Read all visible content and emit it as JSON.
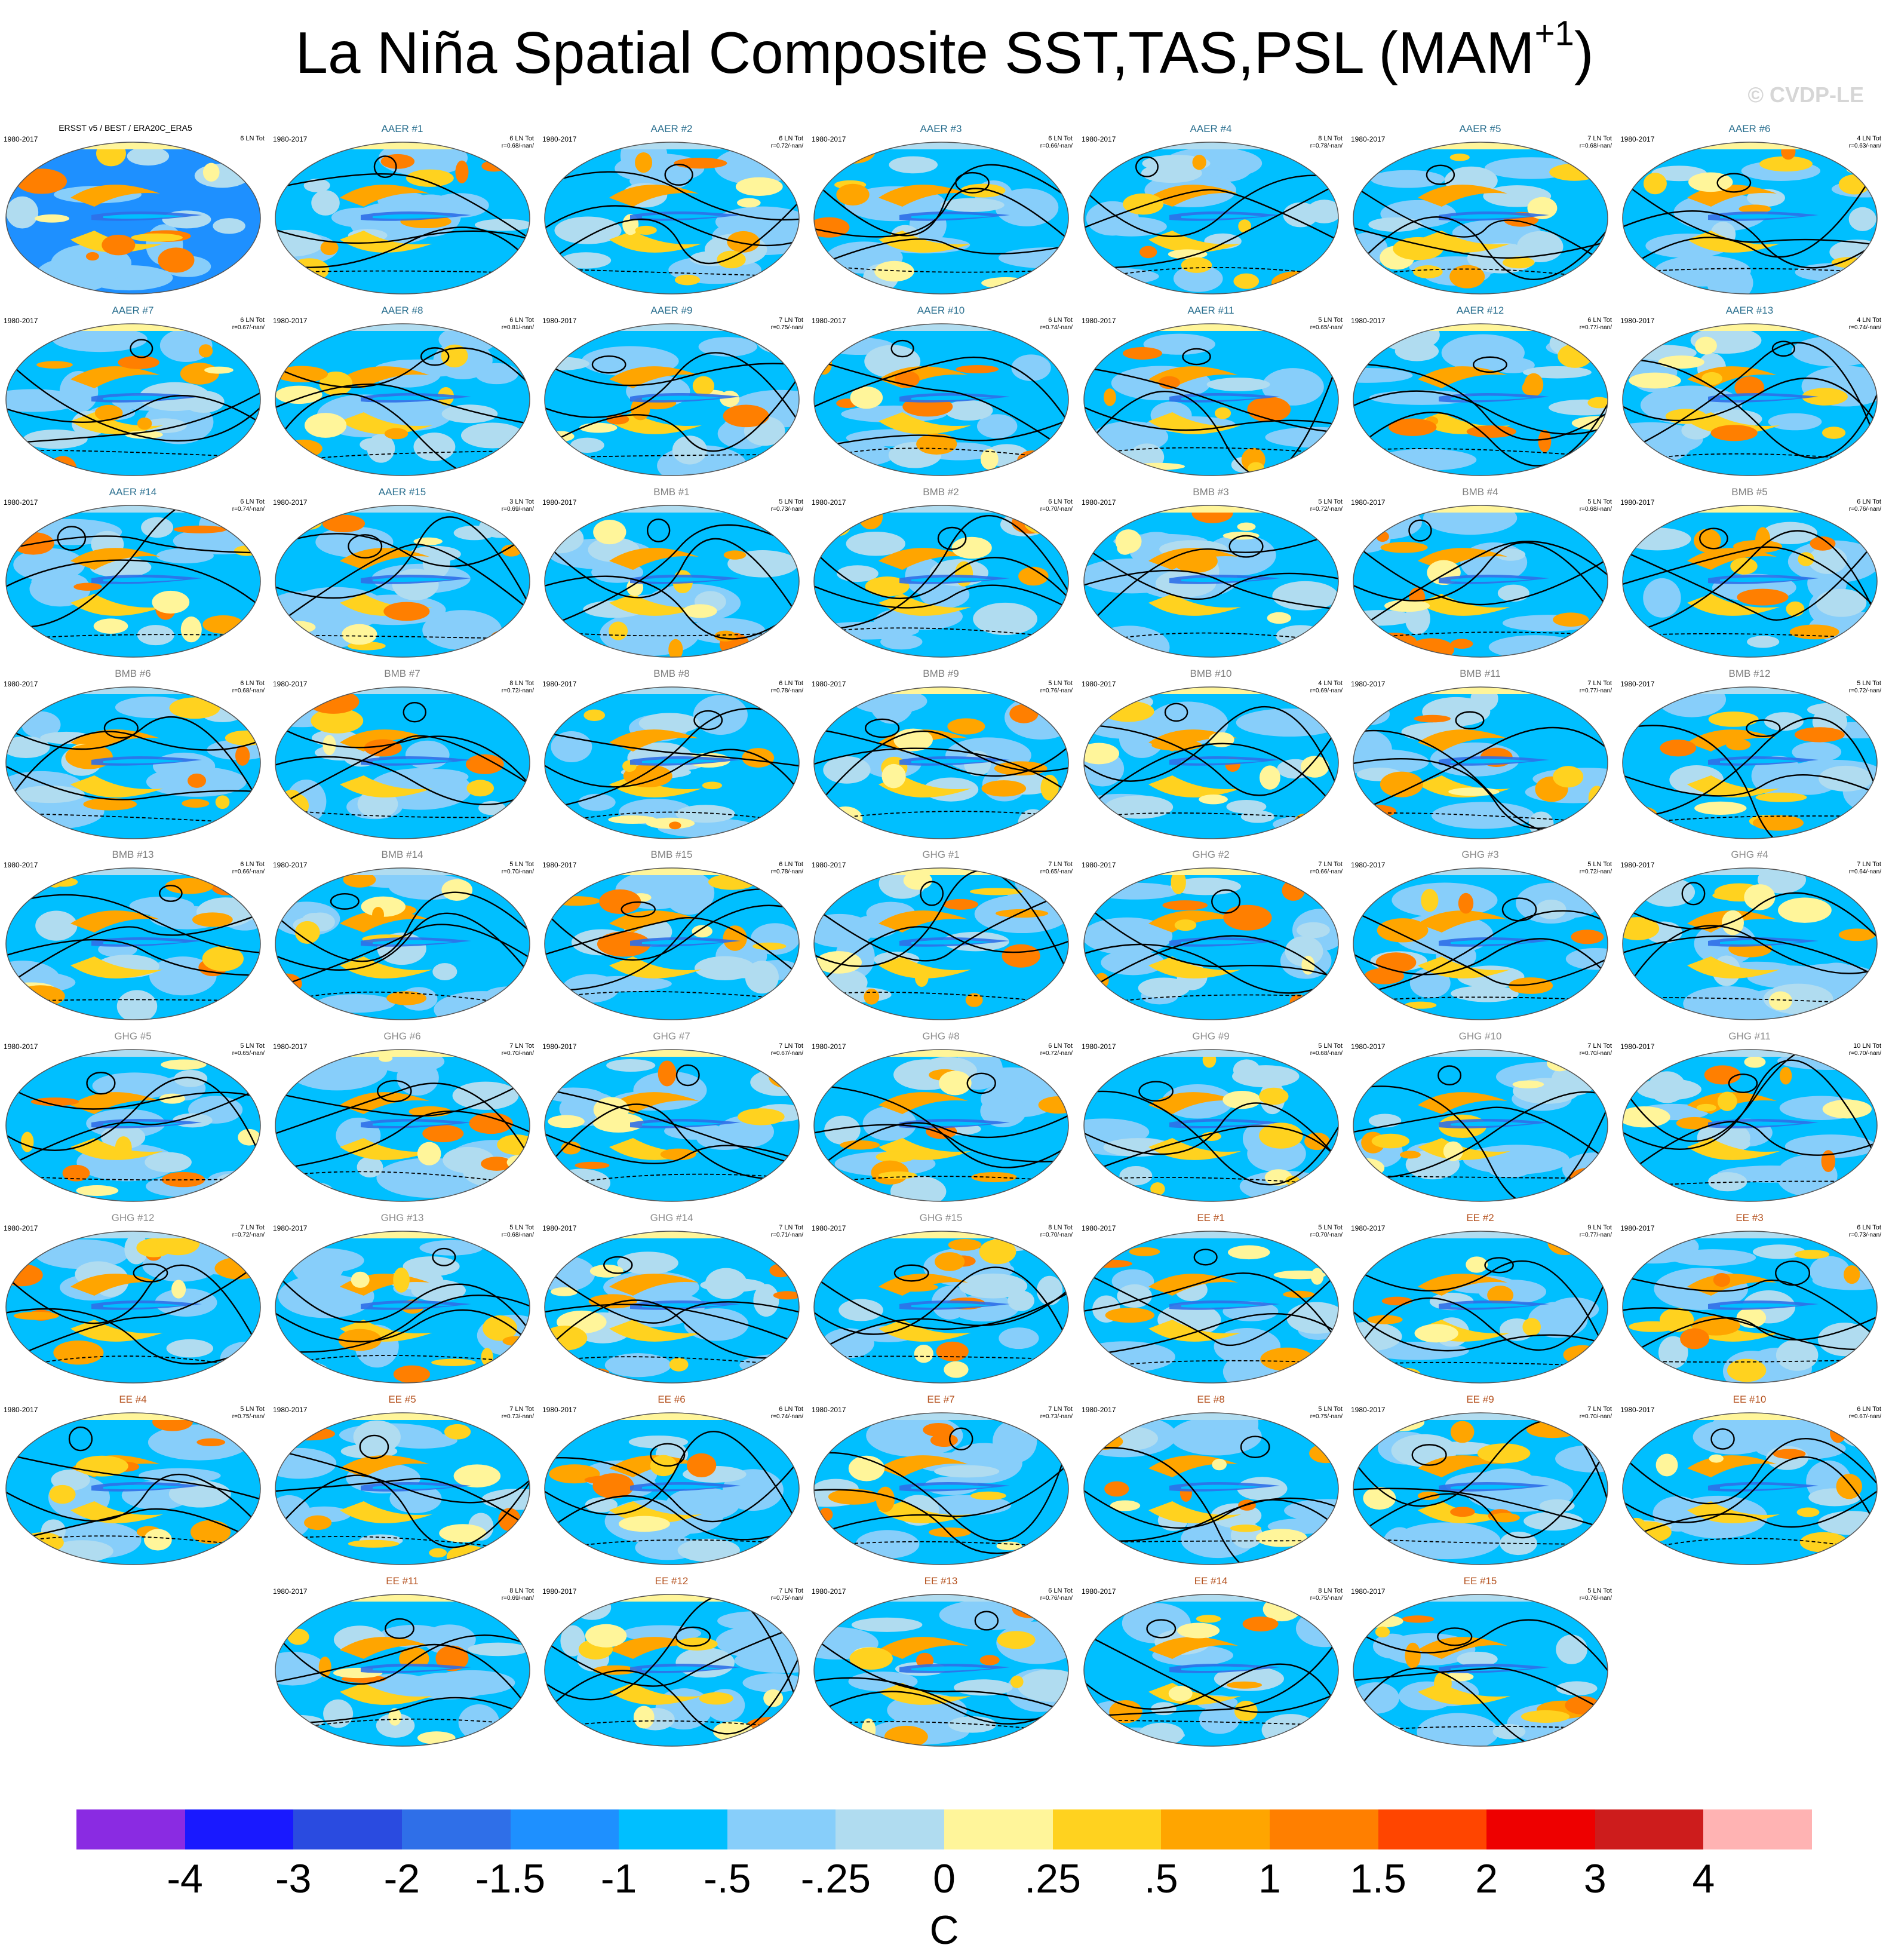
{
  "title": {
    "text": "La Niña Spatial Composite SST,TAS,PSL (MAM",
    "sup": "+1",
    "close": ")"
  },
  "copyright": "© CVDP-LE",
  "panels": [
    {
      "title": "ERSST v5 / BEST / ERA20C_ERA5",
      "period": "1980-2017",
      "count": "6 LN Tot",
      "corr": "",
      "group": "OBS"
    },
    {
      "title": "AAER #1",
      "period": "1980-2017",
      "count": "6 LN Tot",
      "corr": "r=0.68/-nan/",
      "group": "AAER"
    },
    {
      "title": "AAER #2",
      "period": "1980-2017",
      "count": "6 LN Tot",
      "corr": "r=0.72/-nan/",
      "group": "AAER"
    },
    {
      "title": "AAER #3",
      "period": "1980-2017",
      "count": "6 LN Tot",
      "corr": "r=0.66/-nan/",
      "group": "AAER"
    },
    {
      "title": "AAER #4",
      "period": "1980-2017",
      "count": "8 LN Tot",
      "corr": "r=0.78/-nan/",
      "group": "AAER"
    },
    {
      "title": "AAER #5",
      "period": "1980-2017",
      "count": "7 LN Tot",
      "corr": "r=0.68/-nan/",
      "group": "AAER"
    },
    {
      "title": "AAER #6",
      "period": "1980-2017",
      "count": "4 LN Tot",
      "corr": "r=0.63/-nan/",
      "group": "AAER"
    },
    {
      "title": "AAER #7",
      "period": "1980-2017",
      "count": "6 LN Tot",
      "corr": "r=0.67/-nan/",
      "group": "AAER"
    },
    {
      "title": "AAER #8",
      "period": "1980-2017",
      "count": "6 LN Tot",
      "corr": "r=0.81/-nan/",
      "group": "AAER"
    },
    {
      "title": "AAER #9",
      "period": "1980-2017",
      "count": "7 LN Tot",
      "corr": "r=0.75/-nan/",
      "group": "AAER"
    },
    {
      "title": "AAER #10",
      "period": "1980-2017",
      "count": "6 LN Tot",
      "corr": "r=0.74/-nan/",
      "group": "AAER"
    },
    {
      "title": "AAER #11",
      "period": "1980-2017",
      "count": "5 LN Tot",
      "corr": "r=0.65/-nan/",
      "group": "AAER"
    },
    {
      "title": "AAER #12",
      "period": "1980-2017",
      "count": "6 LN Tot",
      "corr": "r=0.77/-nan/",
      "group": "AAER"
    },
    {
      "title": "AAER #13",
      "period": "1980-2017",
      "count": "4 LN Tot",
      "corr": "r=0.74/-nan/",
      "group": "AAER"
    },
    {
      "title": "AAER #14",
      "period": "1980-2017",
      "count": "6 LN Tot",
      "corr": "r=0.74/-nan/",
      "group": "AAER"
    },
    {
      "title": "AAER #15",
      "period": "1980-2017",
      "count": "3 LN Tot",
      "corr": "r=0.69/-nan/",
      "group": "AAER"
    },
    {
      "title": "BMB #1",
      "period": "1980-2017",
      "count": "5 LN Tot",
      "corr": "r=0.73/-nan/",
      "group": "BMB"
    },
    {
      "title": "BMB #2",
      "period": "1980-2017",
      "count": "6 LN Tot",
      "corr": "r=0.70/-nan/",
      "group": "BMB"
    },
    {
      "title": "BMB #3",
      "period": "1980-2017",
      "count": "5 LN Tot",
      "corr": "r=0.72/-nan/",
      "group": "BMB"
    },
    {
      "title": "BMB #4",
      "period": "1980-2017",
      "count": "5 LN Tot",
      "corr": "r=0.68/-nan/",
      "group": "BMB"
    },
    {
      "title": "BMB #5",
      "period": "1980-2017",
      "count": "6 LN Tot",
      "corr": "r=0.76/-nan/",
      "group": "BMB"
    },
    {
      "title": "BMB #6",
      "period": "1980-2017",
      "count": "6 LN Tot",
      "corr": "r=0.68/-nan/",
      "group": "BMB"
    },
    {
      "title": "BMB #7",
      "period": "1980-2017",
      "count": "8 LN Tot",
      "corr": "r=0.72/-nan/",
      "group": "BMB"
    },
    {
      "title": "BMB #8",
      "period": "1980-2017",
      "count": "6 LN Tot",
      "corr": "r=0.78/-nan/",
      "group": "BMB"
    },
    {
      "title": "BMB #9",
      "period": "1980-2017",
      "count": "5 LN Tot",
      "corr": "r=0.76/-nan/",
      "group": "BMB"
    },
    {
      "title": "BMB #10",
      "period": "1980-2017",
      "count": "4 LN Tot",
      "corr": "r=0.69/-nan/",
      "group": "BMB"
    },
    {
      "title": "BMB #11",
      "period": "1980-2017",
      "count": "7 LN Tot",
      "corr": "r=0.77/-nan/",
      "group": "BMB"
    },
    {
      "title": "BMB #12",
      "period": "1980-2017",
      "count": "5 LN Tot",
      "corr": "r=0.72/-nan/",
      "group": "BMB"
    },
    {
      "title": "BMB #13",
      "period": "1980-2017",
      "count": "6 LN Tot",
      "corr": "r=0.66/-nan/",
      "group": "BMB"
    },
    {
      "title": "BMB #14",
      "period": "1980-2017",
      "count": "5 LN Tot",
      "corr": "r=0.70/-nan/",
      "group": "BMB"
    },
    {
      "title": "BMB #15",
      "period": "1980-2017",
      "count": "6 LN Tot",
      "corr": "r=0.78/-nan/",
      "group": "BMB"
    },
    {
      "title": "GHG #1",
      "period": "1980-2017",
      "count": "7 LN Tot",
      "corr": "r=0.65/-nan/",
      "group": "GHG"
    },
    {
      "title": "GHG #2",
      "period": "1980-2017",
      "count": "7 LN Tot",
      "corr": "r=0.66/-nan/",
      "group": "GHG"
    },
    {
      "title": "GHG #3",
      "period": "1980-2017",
      "count": "5 LN Tot",
      "corr": "r=0.72/-nan/",
      "group": "GHG"
    },
    {
      "title": "GHG #4",
      "period": "1980-2017",
      "count": "7 LN Tot",
      "corr": "r=0.64/-nan/",
      "group": "GHG"
    },
    {
      "title": "GHG #5",
      "period": "1980-2017",
      "count": "5 LN Tot",
      "corr": "r=0.65/-nan/",
      "group": "GHG"
    },
    {
      "title": "GHG #6",
      "period": "1980-2017",
      "count": "7 LN Tot",
      "corr": "r=0.70/-nan/",
      "group": "GHG"
    },
    {
      "title": "GHG #7",
      "period": "1980-2017",
      "count": "7 LN Tot",
      "corr": "r=0.67/-nan/",
      "group": "GHG"
    },
    {
      "title": "GHG #8",
      "period": "1980-2017",
      "count": "6 LN Tot",
      "corr": "r=0.72/-nan/",
      "group": "GHG"
    },
    {
      "title": "GHG #9",
      "period": "1980-2017",
      "count": "5 LN Tot",
      "corr": "r=0.68/-nan/",
      "group": "GHG"
    },
    {
      "title": "GHG #10",
      "period": "1980-2017",
      "count": "7 LN Tot",
      "corr": "r=0.70/-nan/",
      "group": "GHG"
    },
    {
      "title": "GHG #11",
      "period": "1980-2017",
      "count": "10 LN Tot",
      "corr": "r=0.70/-nan/",
      "group": "GHG"
    },
    {
      "title": "GHG #12",
      "period": "1980-2017",
      "count": "7 LN Tot",
      "corr": "r=0.72/-nan/",
      "group": "GHG"
    },
    {
      "title": "GHG #13",
      "period": "1980-2017",
      "count": "5 LN Tot",
      "corr": "r=0.68/-nan/",
      "group": "GHG"
    },
    {
      "title": "GHG #14",
      "period": "1980-2017",
      "count": "7 LN Tot",
      "corr": "r=0.71/-nan/",
      "group": "GHG"
    },
    {
      "title": "GHG #15",
      "period": "1980-2017",
      "count": "8 LN Tot",
      "corr": "r=0.70/-nan/",
      "group": "GHG"
    },
    {
      "title": "EE #1",
      "period": "1980-2017",
      "count": "5 LN Tot",
      "corr": "r=0.70/-nan/",
      "group": "EE"
    },
    {
      "title": "EE #2",
      "period": "1980-2017",
      "count": "9 LN Tot",
      "corr": "r=0.77/-nan/",
      "group": "EE"
    },
    {
      "title": "EE #3",
      "period": "1980-2017",
      "count": "6 LN Tot",
      "corr": "r=0.73/-nan/",
      "group": "EE"
    },
    {
      "title": "EE #4",
      "period": "1980-2017",
      "count": "5 LN Tot",
      "corr": "r=0.75/-nan/",
      "group": "EE"
    },
    {
      "title": "EE #5",
      "period": "1980-2017",
      "count": "7 LN Tot",
      "corr": "r=0.73/-nan/",
      "group": "EE"
    },
    {
      "title": "EE #6",
      "period": "1980-2017",
      "count": "6 LN Tot",
      "corr": "r=0.74/-nan/",
      "group": "EE"
    },
    {
      "title": "EE #7",
      "period": "1980-2017",
      "count": "7 LN Tot",
      "corr": "r=0.73/-nan/",
      "group": "EE"
    },
    {
      "title": "EE #8",
      "period": "1980-2017",
      "count": "5 LN Tot",
      "corr": "r=0.75/-nan/",
      "group": "EE"
    },
    {
      "title": "EE #9",
      "period": "1980-2017",
      "count": "7 LN Tot",
      "corr": "r=0.70/-nan/",
      "group": "EE"
    },
    {
      "title": "EE #10",
      "period": "1980-2017",
      "count": "6 LN Tot",
      "corr": "r=0.67/-nan/",
      "group": "EE"
    },
    {
      "title": "EE #11",
      "period": "1980-2017",
      "count": "8 LN Tot",
      "corr": "r=0.69/-nan/",
      "group": "EE"
    },
    {
      "title": "EE #12",
      "period": "1980-2017",
      "count": "7 LN Tot",
      "corr": "r=0.75/-nan/",
      "group": "EE"
    },
    {
      "title": "EE #13",
      "period": "1980-2017",
      "count": "6 LN Tot",
      "corr": "r=0.76/-nan/",
      "group": "EE"
    },
    {
      "title": "EE #14",
      "period": "1980-2017",
      "count": "8 LN Tot",
      "corr": "r=0.75/-nan/",
      "group": "EE"
    },
    {
      "title": "EE #15",
      "period": "1980-2017",
      "count": "5 LN Tot",
      "corr": "r=0.76/-nan/",
      "group": "EE"
    }
  ],
  "group_colors": {
    "OBS": "#000000",
    "AAER": "#2a6f8f",
    "BMB": "#7f7f7f",
    "GHG": "#8c8c8c",
    "EE": "#b5521f"
  },
  "map_colors": {
    "ocean": "#00bfff",
    "ocean_light": "#87cefa",
    "pale": "#b0dcf0",
    "warm_light": "#fff59a",
    "warm": "#ffd21f",
    "orange": "#ffa500",
    "dark_orange": "#ff7f00",
    "land": "#1e90ff",
    "contour": "#000000"
  },
  "colorbar": {
    "colors": [
      "#8a2be2",
      "#1919ff",
      "#2a4be0",
      "#2f6fe8",
      "#1e90ff",
      "#00bfff",
      "#87cefa",
      "#b0dcf0",
      "#fff59a",
      "#ffd21f",
      "#ffa500",
      "#ff7f00",
      "#ff4500",
      "#ee0000",
      "#cd1c1c",
      "#ffb3b3"
    ],
    "labels": [
      "-4",
      "-3",
      "-2",
      "-1.5",
      "-1",
      "-.5",
      "-.25",
      "0",
      ".25",
      ".5",
      "1",
      "1.5",
      "2",
      "3",
      "4"
    ],
    "units": "C"
  }
}
